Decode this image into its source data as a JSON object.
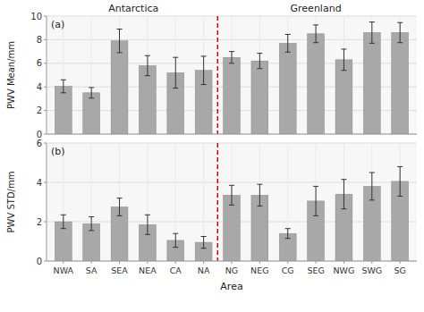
{
  "chart_data": [
    {
      "type": "bar",
      "title": "(a)",
      "categories": [
        "NWA",
        "SA",
        "SEA",
        "NEA",
        "CA",
        "NA",
        "NG",
        "NEG",
        "CG",
        "SEG",
        "NWG",
        "SWG",
        "SG"
      ],
      "values": [
        4.05,
        3.5,
        7.9,
        5.8,
        5.2,
        5.4,
        6.5,
        6.2,
        7.7,
        8.5,
        6.3,
        8.6,
        8.6
      ],
      "errors": [
        0.55,
        0.45,
        1.0,
        0.85,
        1.3,
        1.2,
        0.5,
        0.65,
        0.75,
        0.75,
        0.9,
        0.9,
        0.85
      ],
      "color": "#a8a8a8",
      "y_label": "PWV Mean/mm",
      "ylim": [
        0,
        10
      ],
      "yticks": [
        0,
        2,
        4,
        6,
        8,
        10
      ],
      "grid": true,
      "tick_labels": "y",
      "regions": [
        {
          "label": "Antarctica",
          "first": "NWA",
          "last": "NA"
        },
        {
          "label": "Greenland",
          "first": "NG",
          "last": "SG"
        }
      ]
    },
    {
      "type": "bar",
      "title": "(b)",
      "categories": [
        "NWA",
        "SA",
        "SEA",
        "NEA",
        "CA",
        "NA",
        "NG",
        "NEG",
        "CG",
        "SEG",
        "NWG",
        "SWG",
        "SG"
      ],
      "values": [
        2.0,
        1.9,
        2.75,
        1.85,
        1.05,
        0.95,
        3.35,
        3.35,
        1.4,
        3.05,
        3.4,
        3.8,
        4.05
      ],
      "errors": [
        0.35,
        0.35,
        0.45,
        0.5,
        0.35,
        0.3,
        0.5,
        0.55,
        0.25,
        0.75,
        0.75,
        0.7,
        0.75
      ],
      "color": "#a8a8a8",
      "x_label": "Area",
      "y_label": "PWV STD/mm",
      "ylim": [
        0,
        6
      ],
      "yticks": [
        0,
        2,
        4,
        6
      ],
      "grid": true,
      "regions": [
        {
          "first": "NWA",
          "last": "NA"
        },
        {
          "first": "NG",
          "last": "SG"
        }
      ]
    }
  ]
}
